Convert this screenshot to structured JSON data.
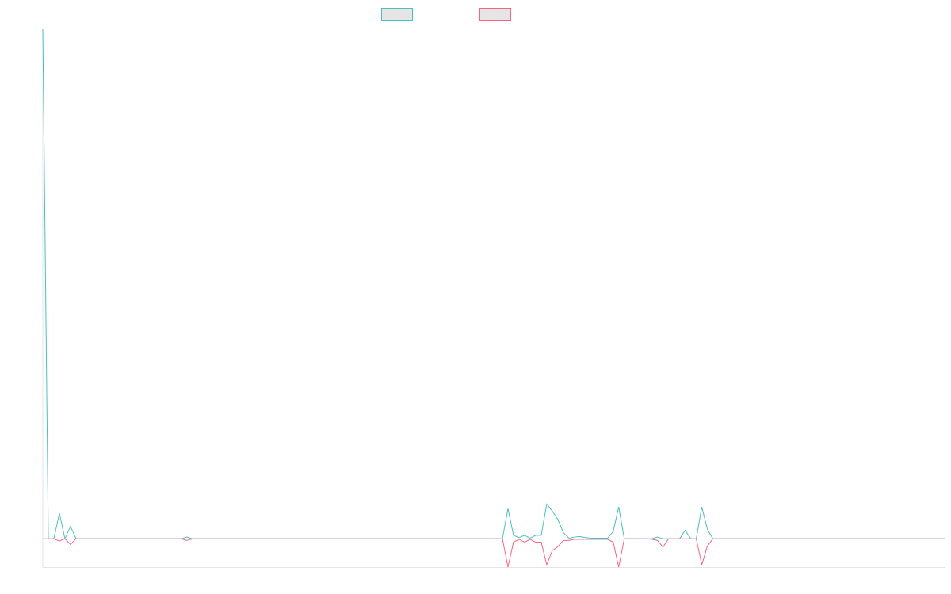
{
  "chart_data": {
    "type": "line",
    "ylim": [
      -5,
      90
    ],
    "grid": false,
    "legend": "top",
    "series": [
      {
        "color": "#4bc0c0",
        "values": [
          90,
          0,
          0,
          4.5,
          0,
          2.2,
          0,
          0,
          0,
          0,
          0,
          0,
          0,
          0,
          0,
          0,
          0,
          0,
          0,
          0,
          0,
          0,
          0,
          0,
          0,
          0,
          0.3,
          0,
          0,
          0,
          0,
          0,
          0,
          0,
          0,
          0,
          0,
          0,
          0,
          0,
          0,
          0,
          0,
          0,
          0,
          0,
          0,
          0,
          0,
          0,
          0,
          0,
          0,
          0,
          0,
          0,
          0,
          0,
          0,
          0,
          0,
          0,
          0,
          0,
          0,
          0,
          0,
          0,
          0,
          0,
          0,
          0,
          0,
          0,
          0,
          0,
          0,
          0,
          0,
          0,
          0,
          0,
          0,
          0,
          5.3,
          0.6,
          0.2,
          0.6,
          0.1,
          0.6,
          0.6,
          6.1,
          4.9,
          3.4,
          1.1,
          0.1,
          0.3,
          0.4,
          0.2,
          0.1,
          0.1,
          0.1,
          0.1,
          1.3,
          5.6,
          0,
          0,
          0,
          0,
          0,
          0,
          0.3,
          0,
          0,
          0,
          0,
          1.5,
          0,
          0,
          5.6,
          1.7,
          0,
          0,
          0,
          0,
          0,
          0,
          0,
          0,
          0,
          0,
          0,
          0,
          0,
          0,
          0,
          0,
          0,
          0,
          0,
          0,
          0,
          0,
          0,
          0,
          0,
          0,
          0,
          0,
          0,
          0,
          0,
          0,
          0,
          0,
          0,
          0,
          0,
          0,
          0,
          0,
          0,
          0,
          0
        ]
      },
      {
        "color": "#ff6384",
        "values": [
          0,
          0,
          0,
          -0.4,
          0,
          -1,
          0,
          0,
          0,
          0,
          0,
          0,
          0,
          0,
          0,
          0,
          0,
          0,
          0,
          0,
          0,
          0,
          0,
          0,
          0,
          0,
          -0.3,
          0,
          0,
          0,
          0,
          0,
          0,
          0,
          0,
          0,
          0,
          0,
          0,
          0,
          0,
          0,
          0,
          0,
          0,
          0,
          0,
          0,
          0,
          0,
          0,
          0,
          0,
          0,
          0,
          0,
          0,
          0,
          0,
          0,
          0,
          0,
          0,
          0,
          0,
          0,
          0,
          0,
          0,
          0,
          0,
          0,
          0,
          0,
          0,
          0,
          0,
          0,
          0,
          0,
          0,
          0,
          0,
          0,
          -5,
          -0.6,
          -0.1,
          -0.6,
          -0.1,
          -0.6,
          -0.6,
          -4.6,
          -2.1,
          -1.4,
          -0.3,
          -0.3,
          -0.1,
          -0.1,
          -0.1,
          -0.1,
          -0.1,
          -0.1,
          -0.1,
          -0.6,
          -5,
          0,
          0,
          0,
          0,
          0,
          -0.1,
          -0.3,
          -1.5,
          0,
          0,
          0,
          0,
          0,
          0,
          -4.6,
          -1.3,
          0,
          0,
          0,
          0,
          0,
          0,
          0,
          0,
          0,
          0,
          0,
          0,
          0,
          0,
          0,
          0,
          0,
          0,
          0,
          0,
          0,
          0,
          0,
          0,
          0,
          0,
          0,
          0,
          0,
          0,
          0,
          0,
          0,
          0,
          0,
          0,
          0,
          0,
          0,
          0,
          0,
          0,
          0
        ]
      }
    ]
  }
}
